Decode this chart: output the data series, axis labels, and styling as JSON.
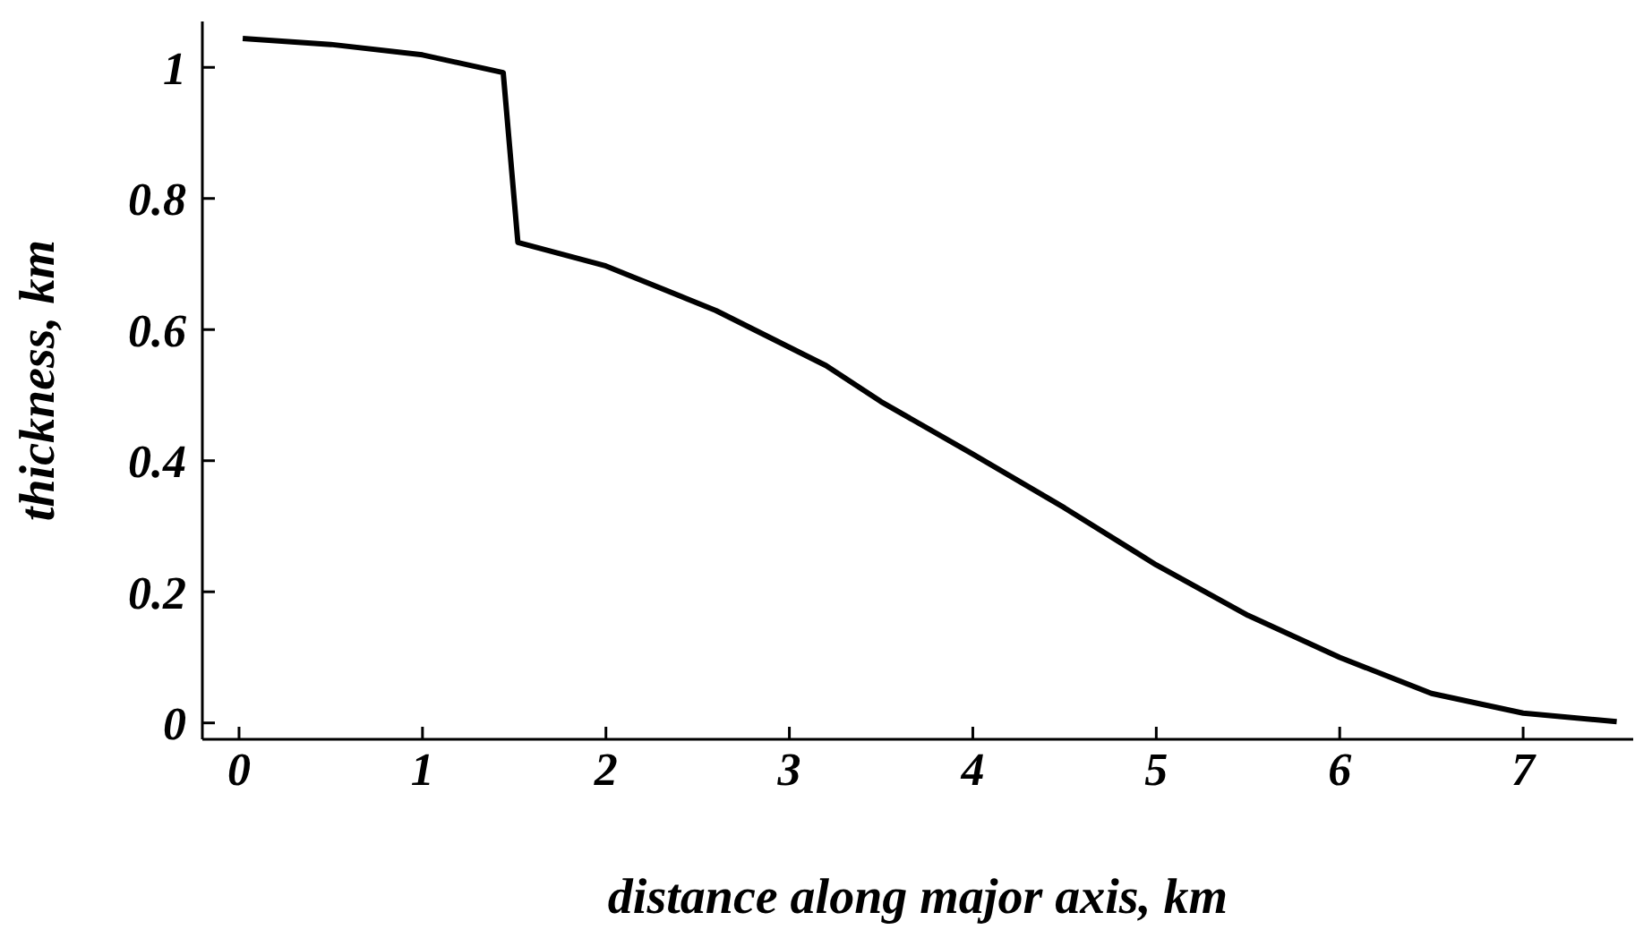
{
  "chart_data": {
    "type": "line",
    "xlabel": "distance along major axis, km",
    "ylabel": "thickness, km",
    "x": [
      0.02,
      0.5,
      1,
      1.44,
      1.52,
      2,
      2.6,
      3.2,
      3.5,
      4,
      4.5,
      5,
      5.5,
      6,
      6.5,
      7,
      7.51
    ],
    "series": [
      {
        "color": "#000000",
        "values": [
          1.044,
          1.035,
          1.019,
          0.992,
          0.733,
          0.697,
          0.629,
          0.545,
          0.49,
          0.41,
          0.328,
          0.241,
          0.164,
          0.1,
          0.045,
          0.015,
          0.002
        ]
      }
    ],
    "xlim": [
      -0.2,
      7.6
    ],
    "xticks": [
      0,
      1,
      2,
      3,
      4,
      5,
      6,
      7
    ],
    "ylim": [
      -0.025,
      1.07
    ],
    "yticks": [
      0,
      {
        "value": 0.2,
        "label": "0.2"
      },
      {
        "value": 0.4,
        "label": "0.4"
      },
      {
        "value": 0.6,
        "label": "0.6"
      },
      {
        "value": 0.8,
        "label": "0.8"
      },
      1
    ],
    "grid": false,
    "legend": false,
    "marker": "none",
    "line_style": "solid"
  }
}
